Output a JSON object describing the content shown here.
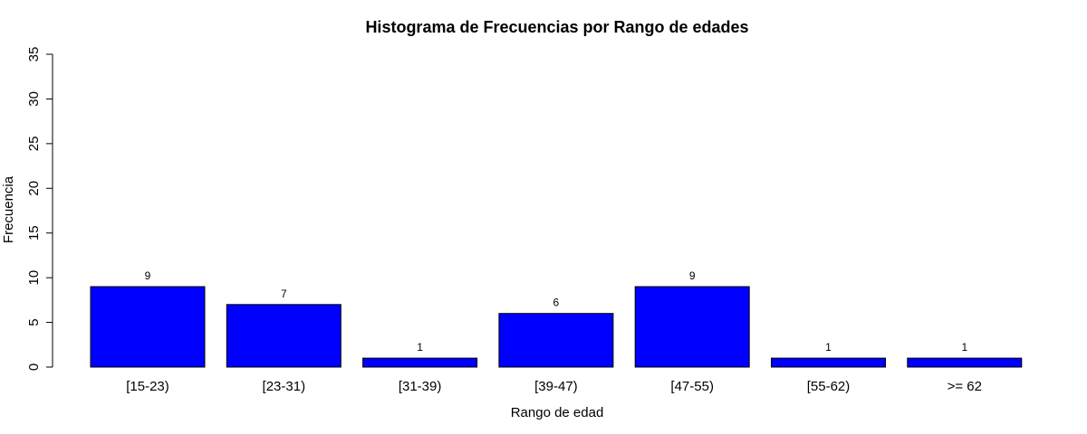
{
  "chart_data": {
    "type": "bar",
    "title": "Histograma de Frecuencias por Rango de edades",
    "xlabel": "Rango de edad",
    "ylabel": "Frecuencia",
    "categories": [
      "[15-23)",
      "[23-31)",
      "[31-39)",
      "[39-47)",
      "[47-55)",
      "[55-62)",
      ">= 62"
    ],
    "values": [
      9,
      7,
      1,
      6,
      9,
      1,
      1
    ],
    "ylim": [
      0,
      35
    ],
    "yticks": [
      0,
      5,
      10,
      15,
      20,
      25,
      30,
      35
    ],
    "bar_color": "#0000ff",
    "bar_border_color": "#000000",
    "grid": false,
    "legend": "none"
  }
}
